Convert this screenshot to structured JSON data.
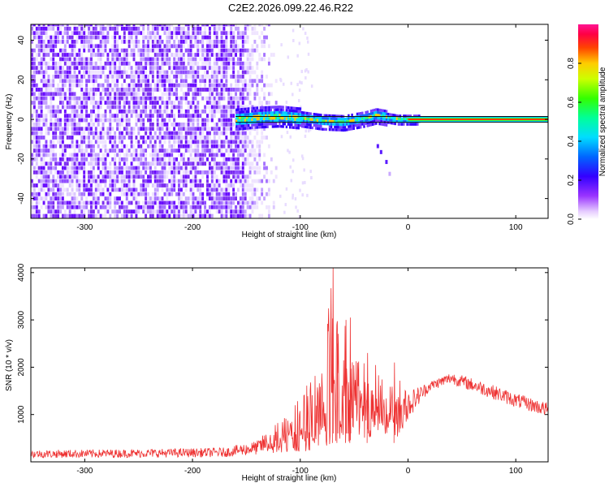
{
  "title": "C2E2.2026.099.22.46.R22",
  "chart_data": [
    {
      "type": "heatmap",
      "xlabel": "Height of straight line (km)",
      "ylabel": "Frequency (Hz)",
      "xlim": [
        -350,
        130
      ],
      "ylim": [
        -50,
        48
      ],
      "x_ticks": [
        "-300",
        "-200",
        "-100",
        "0",
        "100"
      ],
      "y_ticks": [
        "-40",
        "-20",
        "0",
        "20",
        "40"
      ],
      "colorbar": {
        "label": "Normalized spectral amplitude",
        "range": [
          0,
          1
        ],
        "ticks": [
          "0.0",
          "0.2",
          "0.4",
          "0.6",
          "0.8"
        ],
        "colors": [
          "#ffffff",
          "#d8b4ff",
          "#8a2be2",
          "#5b00ff",
          "#0000ff",
          "#00bfff",
          "#00ffff",
          "#00ff7f",
          "#00ff00",
          "#ffff00",
          "#ff8000",
          "#ff0000",
          "#ff1493"
        ]
      },
      "features": [
        {
          "name": "noise",
          "x_range": [
            -350,
            -120
          ],
          "freq_range": [
            -50,
            48
          ]
        },
        {
          "name": "carrier",
          "points": [
            [
              -160,
              0
            ],
            [
              -140,
              1
            ],
            [
              -120,
              1.5
            ],
            [
              -100,
              0.5
            ],
            [
              -80,
              -1
            ],
            [
              -60,
              -1.5
            ],
            [
              -50,
              -0.5
            ],
            [
              -40,
              0.5
            ],
            [
              -30,
              2
            ],
            [
              -20,
              1
            ],
            [
              -10,
              0
            ],
            [
              0,
              0
            ],
            [
              20,
              0
            ],
            [
              60,
              0
            ],
            [
              100,
              0
            ],
            [
              130,
              0
            ]
          ]
        },
        {
          "name": "spur",
          "points": [
            [
              -28,
              -14
            ],
            [
              -25,
              -17
            ],
            [
              -20,
              -22
            ],
            [
              -17,
              -28
            ]
          ]
        }
      ]
    },
    {
      "type": "line",
      "xlabel": "Height of straight line (km)",
      "ylabel": "SNR (10 * v/v)",
      "xlim": [
        -350,
        130
      ],
      "ylim": [
        0,
        4100
      ],
      "x_ticks": [
        "-300",
        "-200",
        "-100",
        "0",
        "100"
      ],
      "y_ticks": [
        "1000",
        "2000",
        "3000",
        "4000"
      ],
      "series": [
        {
          "color": "#ee3333",
          "envelope": [
            {
              "x": -350,
              "low": 80,
              "high": 250
            },
            {
              "x": -250,
              "low": 90,
              "high": 270
            },
            {
              "x": -170,
              "low": 100,
              "high": 300
            },
            {
              "x": -140,
              "low": 150,
              "high": 450
            },
            {
              "x": -120,
              "low": 200,
              "high": 900
            },
            {
              "x": -100,
              "low": 200,
              "high": 1400
            },
            {
              "x": -80,
              "low": 300,
              "high": 2300
            },
            {
              "x": -70,
              "low": 400,
              "high": 4100
            },
            {
              "x": -60,
              "low": 400,
              "high": 3000
            },
            {
              "x": -40,
              "low": 500,
              "high": 2300
            },
            {
              "x": -20,
              "low": 600,
              "high": 2100
            },
            {
              "x": -10,
              "low": 500,
              "high": 1800
            },
            {
              "x": 0,
              "low": 900,
              "high": 1500
            },
            {
              "x": 20,
              "low": 1500,
              "high": 1700
            },
            {
              "x": 40,
              "low": 1650,
              "high": 1900
            },
            {
              "x": 70,
              "low": 1400,
              "high": 1700
            },
            {
              "x": 100,
              "low": 1150,
              "high": 1450
            },
            {
              "x": 130,
              "low": 950,
              "high": 1250
            }
          ]
        }
      ]
    }
  ]
}
